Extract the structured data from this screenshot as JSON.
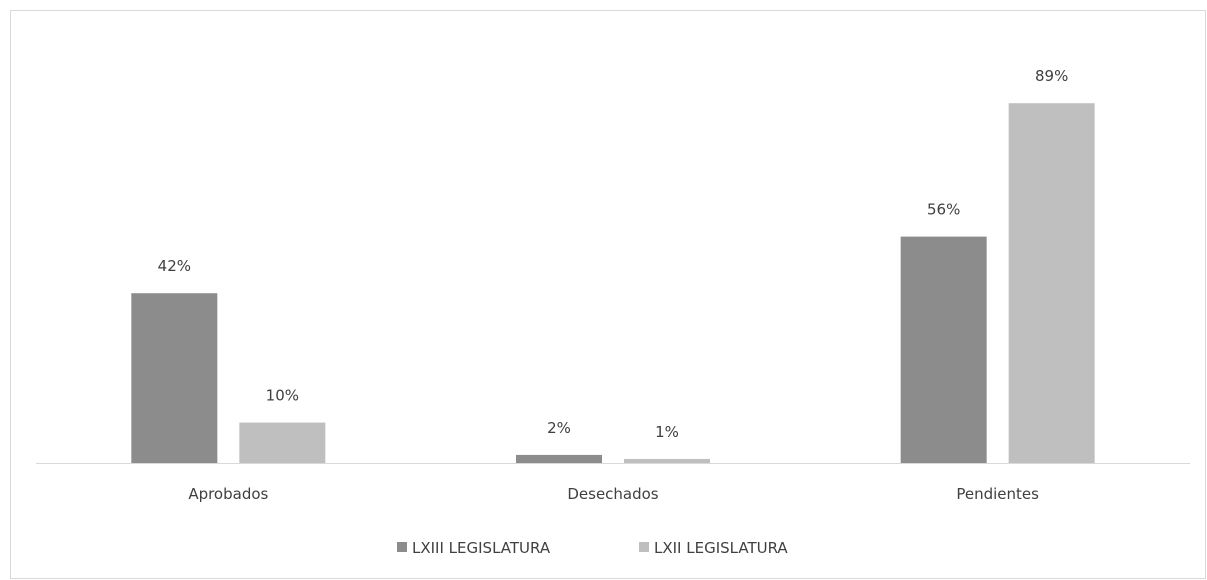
{
  "chart_data": {
    "type": "bar",
    "title": "",
    "xlabel": "",
    "ylabel": "",
    "categories": [
      "Aprobados",
      "Desechados",
      "Pendientes"
    ],
    "series": [
      {
        "name": "LXIII LEGISLATURA",
        "values": [
          42,
          2,
          56
        ],
        "labels": [
          "42%",
          "2%",
          "56%"
        ],
        "color": "#8c8c8c"
      },
      {
        "name": "LXII LEGISLATURA",
        "values": [
          10,
          1,
          89
        ],
        "labels": [
          "10%",
          "1%",
          "89%"
        ],
        "color": "#bfbfbf"
      }
    ],
    "unit": "%",
    "ylim": [
      0,
      94
    ],
    "grid": false,
    "legend": "bottom",
    "axis_color": "#d9d9d9"
  }
}
